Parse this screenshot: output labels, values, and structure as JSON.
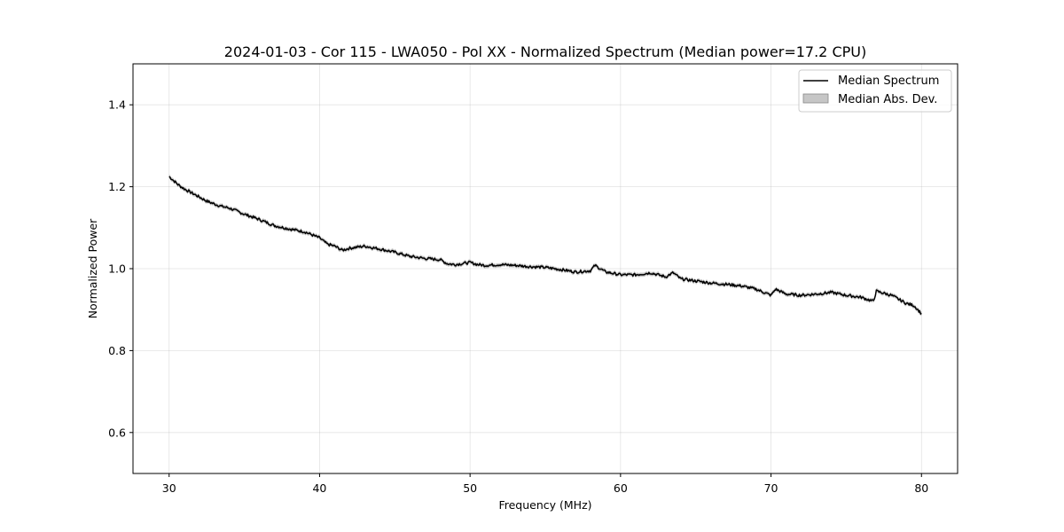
{
  "chart_data": {
    "type": "line",
    "title": "2024-01-03 - Cor 115 - LWA050 - Pol XX - Normalized Spectrum (Median power=17.2 CPU)",
    "xlabel": "Frequency (MHz)",
    "ylabel": "Normalized Power",
    "xlim": [
      27.6,
      82.4
    ],
    "ylim": [
      0.5,
      1.5
    ],
    "xticks": [
      30,
      40,
      50,
      60,
      70,
      80
    ],
    "yticks": [
      0.6,
      0.8,
      1.0,
      1.2,
      1.4
    ],
    "grid": true,
    "legend_position": "top-right",
    "colors": {
      "line": "#000000",
      "band": "#a0a0a0"
    },
    "series": [
      {
        "name": "Median Spectrum",
        "kind": "line",
        "x": [
          30.0,
          30.3,
          30.6,
          31.0,
          31.5,
          32.0,
          32.5,
          33.0,
          33.5,
          34.0,
          35.0,
          36.0,
          37.0,
          38.0,
          39.0,
          40.0,
          40.5,
          41.0,
          41.5,
          42.0,
          43.0,
          44.0,
          45.0,
          46.0,
          47.0,
          48.0,
          48.5,
          49.0,
          50.0,
          50.5,
          51.0,
          52.0,
          53.0,
          54.0,
          55.0,
          56.0,
          57.0,
          58.0,
          58.3,
          59.0,
          60.0,
          61.0,
          62.0,
          63.0,
          63.5,
          64.0,
          65.0,
          66.0,
          67.0,
          68.0,
          69.0,
          70.0,
          70.3,
          71.0,
          72.0,
          73.0,
          74.0,
          75.0,
          76.0,
          76.8,
          77.0,
          78.0,
          79.0,
          79.5,
          80.0
        ],
        "y": [
          1.225,
          1.215,
          1.205,
          1.195,
          1.185,
          1.175,
          1.165,
          1.158,
          1.152,
          1.148,
          1.133,
          1.12,
          1.105,
          1.097,
          1.09,
          1.075,
          1.06,
          1.055,
          1.045,
          1.05,
          1.055,
          1.048,
          1.04,
          1.03,
          1.025,
          1.022,
          1.012,
          1.01,
          1.015,
          1.01,
          1.008,
          1.01,
          1.008,
          1.005,
          1.003,
          0.998,
          0.992,
          0.995,
          1.008,
          0.992,
          0.985,
          0.985,
          0.99,
          0.98,
          0.99,
          0.975,
          0.97,
          0.965,
          0.962,
          0.958,
          0.95,
          0.935,
          0.95,
          0.938,
          0.935,
          0.938,
          0.942,
          0.935,
          0.93,
          0.92,
          0.945,
          0.935,
          0.915,
          0.91,
          0.89
        ]
      },
      {
        "name": "Median Abs. Dev.",
        "kind": "band",
        "halfwidth": 0.005
      }
    ]
  }
}
